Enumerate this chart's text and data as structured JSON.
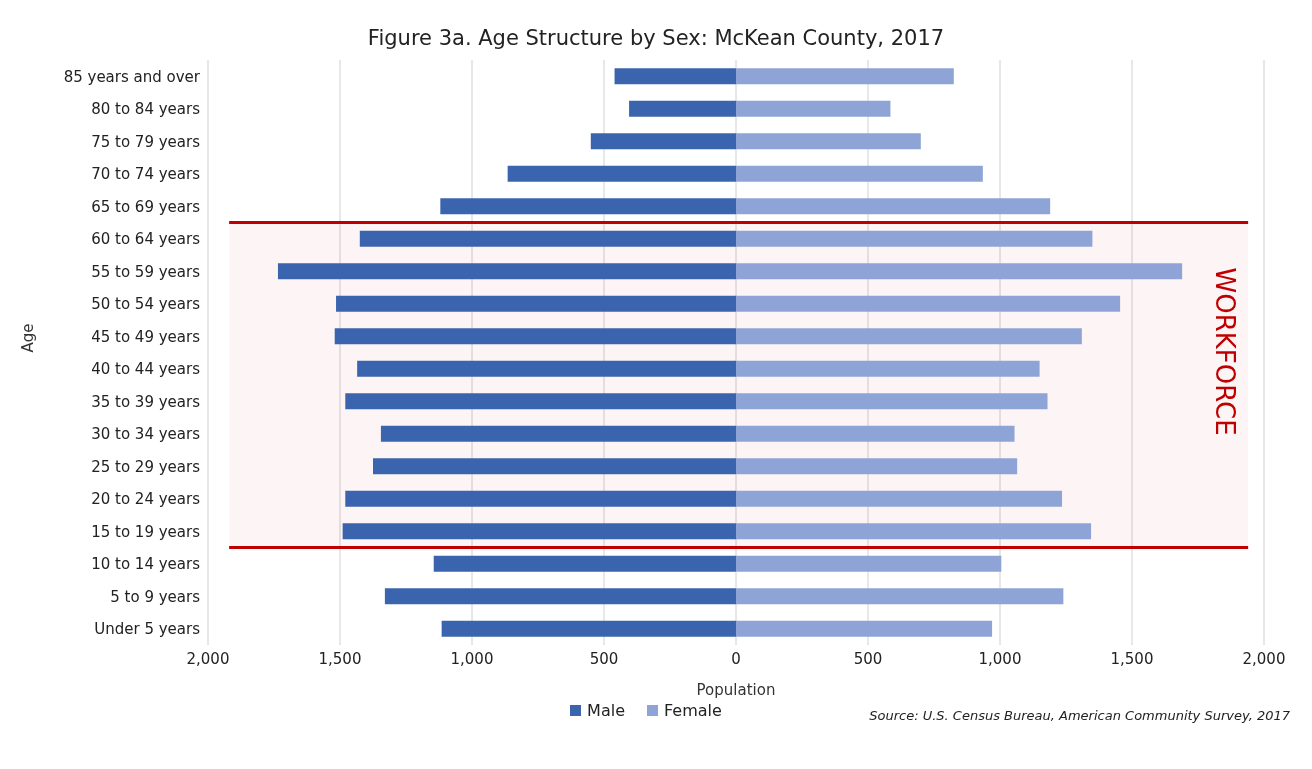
{
  "chart_data": {
    "type": "bar",
    "orientation": "horizontal",
    "stacked": true,
    "title": "Figure 3a. Age Structure by Sex: McKean County, 2017",
    "xlabel": "Population",
    "ylabel": "Age",
    "categories": [
      "85 years and over",
      "80 to 84 years",
      "75 to 79 years",
      "70 to 74 years",
      "65 to 69 years",
      "60 to 64 years",
      "55 to 59 years",
      "50 to 54 years",
      "45 to 49 years",
      "40 to 44 years",
      "35 to 39 years",
      "30 to 34 years",
      "25 to 29 years",
      "20 to 24 years",
      "15 to 19 years",
      "10 to 14 years",
      "5 to 9 years",
      "Under 5 years"
    ],
    "series": [
      {
        "name": "Male",
        "color": "#3a64ad",
        "values": [
          -460,
          -405,
          -550,
          -865,
          -1120,
          -1425,
          -1735,
          -1515,
          -1520,
          -1435,
          -1480,
          -1345,
          -1375,
          -1480,
          -1490,
          -1145,
          -1330,
          -1115
        ]
      },
      {
        "name": "Female",
        "color": "#8fa4d6",
        "values": [
          825,
          585,
          700,
          935,
          1190,
          1350,
          1690,
          1455,
          1310,
          1150,
          1180,
          1055,
          1065,
          1235,
          1345,
          1005,
          1240,
          970
        ]
      }
    ],
    "xlim": [
      -2000,
      2000
    ],
    "xticks": [
      {
        "value": -2000,
        "label": "2,000"
      },
      {
        "value": -1500,
        "label": "1,500"
      },
      {
        "value": -1000,
        "label": "1,000"
      },
      {
        "value": -500,
        "label": "500"
      },
      0,
      500,
      {
        "value": 1000,
        "label": "1,000"
      },
      {
        "value": 1500,
        "label": "1,500"
      },
      {
        "value": 2000,
        "label": "2,000"
      }
    ],
    "grid": "x",
    "legend": "bottom",
    "bands": [
      {
        "axis": "y",
        "from": "60 to 64 years",
        "to": "15 to 19 years",
        "label": "WORKFORCE",
        "color": "#c00000"
      }
    ],
    "annotations": [
      "Source: U.S. Census Bureau, American Community Survey, 2017"
    ]
  }
}
